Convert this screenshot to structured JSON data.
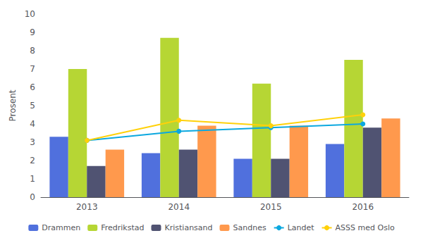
{
  "chart_data": {
    "type": "bar",
    "categories": [
      "2013",
      "2014",
      "2015",
      "2016"
    ],
    "ylabel": "Prosent",
    "series": [
      {
        "name": "Drammen",
        "type": "bar",
        "values": [
          3.3,
          2.4,
          2.1,
          2.9
        ]
      },
      {
        "name": "Fredrikstad",
        "type": "bar",
        "values": [
          7.0,
          8.7,
          6.2,
          7.5
        ]
      },
      {
        "name": "Kristiansand",
        "type": "bar",
        "values": [
          1.7,
          2.6,
          2.1,
          3.8
        ]
      },
      {
        "name": "Sandnes",
        "type": "bar",
        "values": [
          2.6,
          3.9,
          3.9,
          4.3
        ]
      },
      {
        "name": "Landet",
        "type": "line",
        "marker": "circle",
        "values": [
          3.1,
          3.6,
          3.8,
          4.0
        ]
      },
      {
        "name": "ASSS med Oslo",
        "type": "line",
        "marker": "circle",
        "values": [
          3.1,
          4.2,
          3.9,
          4.5
        ]
      }
    ],
    "ylim": [
      0,
      10
    ],
    "yticks": [
      0,
      1,
      2,
      3,
      4,
      5,
      6,
      7,
      8,
      9,
      10
    ],
    "grid": false,
    "legend": "bottom"
  }
}
